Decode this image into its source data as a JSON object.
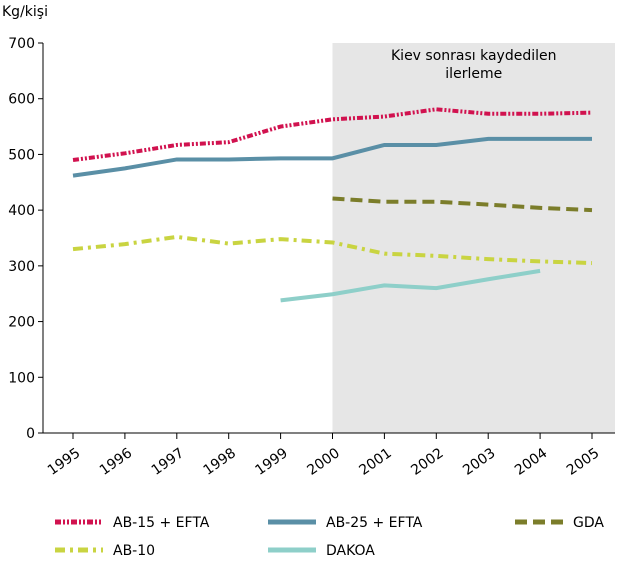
{
  "chart_data": {
    "type": "line",
    "y_label": "Kg/kişi",
    "annotation": [
      "Kiev sonrası kaydedilen",
      "ilerleme"
    ],
    "highlight_from": "2000",
    "categories": [
      "1995",
      "1996",
      "1997",
      "1998",
      "1999",
      "2000",
      "2001",
      "2002",
      "2003",
      "2004",
      "2005"
    ],
    "ylim": [
      0,
      700
    ],
    "yticks": [
      0,
      100,
      200,
      300,
      400,
      500,
      600,
      700
    ],
    "grid": false,
    "series": [
      {
        "name": "AB-15 + EFTA",
        "color": "#d1124f",
        "dash": "6 2 2 2 2 2",
        "values": [
          490,
          502,
          517,
          522,
          550,
          563,
          568,
          581,
          573,
          573,
          575
        ]
      },
      {
        "name": "AB-25 + EFTA",
        "color": "#5a8fa6",
        "dash": "none",
        "values": [
          462,
          475,
          491,
          491,
          493,
          493,
          517,
          517,
          528,
          528,
          528
        ]
      },
      {
        "name": "GDA",
        "color": "#7b7d2a",
        "dash": "12 6",
        "values": [
          null,
          null,
          null,
          null,
          null,
          421,
          415,
          415,
          410,
          404,
          400
        ]
      },
      {
        "name": "AB-10",
        "color": "#c9d441",
        "dash": "10 5 3 5",
        "values": [
          330,
          339,
          352,
          340,
          348,
          342,
          322,
          318,
          312,
          308,
          305
        ]
      },
      {
        "name": "DAKOA",
        "color": "#8ecfc9",
        "dash": "none",
        "values": [
          null,
          null,
          null,
          null,
          238,
          249,
          265,
          260,
          276,
          291,
          null
        ]
      }
    ]
  }
}
